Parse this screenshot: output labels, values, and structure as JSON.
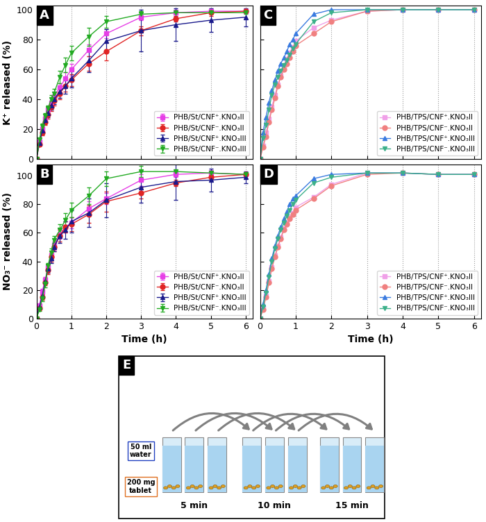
{
  "chart_data": [
    {
      "type": "line",
      "title": "A",
      "y_label": "K⁺ released (%)",
      "x": [
        0,
        0.083,
        0.167,
        0.25,
        0.33,
        0.42,
        0.5,
        0.67,
        0.83,
        1,
        1.5,
        2,
        3,
        4,
        5,
        6
      ],
      "xlim": [
        0,
        6.2
      ],
      "xticks": [
        0,
        1,
        2,
        3,
        4,
        5,
        6
      ],
      "ylim": [
        0,
        103
      ],
      "yticks": [
        0,
        20,
        40,
        60,
        80,
        100
      ],
      "grid": "x",
      "legend": "lower right",
      "tick_labels": "y",
      "series": [
        {
          "name": "PHB/St/CNF⁺.KNO₃II",
          "color": "#e63ee6",
          "marker": "square",
          "line_style": "solid",
          "values": [
            0,
            12,
            20,
            27,
            33,
            38,
            42,
            48,
            54,
            60,
            73,
            84,
            95,
            98,
            99,
            99
          ],
          "errors": [
            0,
            1,
            2,
            2,
            2,
            3,
            3,
            3,
            4,
            4,
            4,
            3,
            2,
            2,
            1,
            1
          ]
        },
        {
          "name": "PHB/St/CNF⁻.KNO₃II",
          "color": "#e02424",
          "marker": "circle",
          "line_style": "solid",
          "values": [
            0,
            10,
            18,
            25,
            30,
            35,
            39,
            44,
            49,
            53,
            64,
            72,
            86,
            94,
            98,
            99
          ],
          "errors": [
            0,
            1,
            2,
            2,
            3,
            3,
            3,
            4,
            4,
            4,
            5,
            6,
            3,
            2,
            2,
            1
          ]
        },
        {
          "name": "PHB/St/CNF⁺.KNO₃III",
          "color": "#1a1a8c",
          "marker": "triangle_up",
          "line_style": "solid",
          "values": [
            0,
            11,
            19,
            26,
            31,
            36,
            40,
            45,
            49,
            54,
            66,
            79,
            86,
            90,
            93,
            95
          ],
          "errors": [
            0,
            1,
            2,
            2,
            3,
            3,
            3,
            4,
            5,
            6,
            8,
            8,
            14,
            11,
            8,
            6
          ]
        },
        {
          "name": "PHB/St/CNF⁻.KNO₃III",
          "color": "#22aa22",
          "marker": "triangle_down",
          "line_style": "solid",
          "values": [
            0,
            13,
            22,
            29,
            34,
            40,
            44,
            55,
            63,
            71,
            82,
            92,
            97,
            98,
            98,
            98
          ],
          "errors": [
            0,
            1,
            2,
            2,
            2,
            3,
            3,
            4,
            5,
            5,
            6,
            4,
            2,
            1,
            1,
            1
          ]
        }
      ]
    },
    {
      "type": "line",
      "title": "B",
      "x_label": "Time (h)",
      "y_label": "NO₃⁻ released (%)",
      "x": [
        0,
        0.083,
        0.167,
        0.25,
        0.33,
        0.42,
        0.5,
        0.67,
        0.83,
        1,
        1.5,
        2,
        3,
        4,
        5,
        6
      ],
      "xlim": [
        0,
        6.2
      ],
      "xticks": [
        0,
        1,
        2,
        3,
        4,
        5,
        6
      ],
      "ylim": [
        0,
        108
      ],
      "yticks": [
        0,
        20,
        40,
        60,
        80,
        100
      ],
      "grid": "x",
      "legend": "lower right",
      "series": [
        {
          "name": "PHB/St/CNF⁺.KNO₃II",
          "color": "#e63ee6",
          "marker": "square",
          "line_style": "solid",
          "values": [
            0,
            9,
            19,
            27,
            36,
            44,
            51,
            59,
            64,
            67,
            77,
            84,
            97,
            101,
            102,
            101
          ],
          "errors": [
            0,
            1,
            2,
            2,
            2,
            3,
            3,
            3,
            4,
            4,
            5,
            4,
            4,
            2,
            2,
            1
          ]
        },
        {
          "name": "PHB/St/CNF⁻.KNO₃II",
          "color": "#e02424",
          "marker": "circle",
          "line_style": "solid",
          "values": [
            0,
            7,
            15,
            25,
            34,
            43,
            50,
            58,
            64,
            66,
            73,
            82,
            88,
            95,
            99,
            101
          ],
          "errors": [
            0,
            1,
            2,
            2,
            3,
            3,
            3,
            4,
            4,
            5,
            6,
            7,
            4,
            2,
            2,
            1
          ]
        },
        {
          "name": "PHB/St/CNF⁺.KNO₃III",
          "color": "#1a1a8c",
          "marker": "triangle_up",
          "line_style": "solid",
          "values": [
            0,
            8,
            16,
            26,
            35,
            42,
            50,
            58,
            62,
            68,
            74,
            83,
            92,
            96,
            97,
            99
          ],
          "errors": [
            0,
            1,
            2,
            2,
            3,
            3,
            3,
            5,
            6,
            8,
            10,
            12,
            11,
            13,
            8,
            4
          ]
        },
        {
          "name": "PHB/St/CNF⁻.KNO₃III",
          "color": "#22aa22",
          "marker": "triangle_down",
          "line_style": "solid",
          "values": [
            0,
            6,
            14,
            24,
            37,
            46,
            55,
            62,
            69,
            76,
            86,
            98,
            103,
            103,
            102,
            101
          ],
          "errors": [
            0,
            1,
            2,
            2,
            2,
            3,
            3,
            4,
            5,
            5,
            6,
            5,
            4,
            1,
            1,
            1
          ]
        }
      ]
    },
    {
      "type": "line",
      "title": "C",
      "x": [
        0,
        0.083,
        0.167,
        0.25,
        0.33,
        0.42,
        0.5,
        0.58,
        0.67,
        0.75,
        0.83,
        0.92,
        1,
        1.5,
        2,
        3,
        4,
        5,
        6
      ],
      "xlim": [
        0,
        6.2
      ],
      "xticks": [
        0,
        1,
        2,
        3,
        4,
        5,
        6
      ],
      "ylim": [
        0,
        103
      ],
      "yticks": [
        0,
        20,
        40,
        60,
        80,
        100
      ],
      "grid": "x",
      "legend": "lower right",
      "tick_labels": false,
      "series": [
        {
          "name": "PHB/TPS/CNF⁺.KNO₃II",
          "color": "#f0a0e8",
          "marker": "square",
          "line_style": "solid",
          "values": [
            0,
            9,
            18,
            27,
            35,
            43,
            50,
            56,
            62,
            67,
            71,
            75,
            79,
            88,
            93,
            99,
            100,
            100,
            100
          ]
        },
        {
          "name": "PHB/TPS/CNF⁻.KNO₃II",
          "color": "#f08080",
          "marker": "circle",
          "line_style": "solid",
          "values": [
            0,
            8,
            15,
            25,
            33,
            41,
            49,
            55,
            60,
            64,
            68,
            72,
            76,
            84,
            92,
            99,
            100,
            100,
            100
          ]
        },
        {
          "name": "PHB/TPS/CNF⁺.KNO₃III",
          "color": "#3a7be0",
          "marker": "triangle_up",
          "line_style": "solid",
          "values": [
            0,
            18,
            28,
            38,
            46,
            53,
            59,
            64,
            68,
            72,
            77,
            80,
            84,
            97,
            100,
            100,
            100,
            100,
            100
          ]
        },
        {
          "name": "PHB/TPS/CNF⁻.KNO₃III",
          "color": "#3cb08a",
          "marker": "triangle_down",
          "line_style": "solid",
          "values": [
            0,
            14,
            23,
            33,
            43,
            50,
            55,
            59,
            63,
            66,
            70,
            74,
            77,
            92,
            98,
            100,
            100,
            100,
            100
          ]
        }
      ]
    },
    {
      "type": "line",
      "title": "D",
      "x_label": "Time (h)",
      "x": [
        0,
        0.083,
        0.167,
        0.25,
        0.33,
        0.42,
        0.5,
        0.58,
        0.67,
        0.75,
        0.83,
        0.92,
        1,
        1.5,
        2,
        3,
        4,
        5,
        6
      ],
      "xlim": [
        0,
        6.2
      ],
      "xticks": [
        0,
        1,
        2,
        3,
        4,
        5,
        6
      ],
      "ylim": [
        0,
        108
      ],
      "yticks": [
        0,
        20,
        40,
        60,
        80,
        100
      ],
      "grid": "x",
      "legend": "lower right",
      "tick_labels": "x",
      "series": [
        {
          "name": "PHB/TPS/CNF⁺.KNO₃II",
          "color": "#f0a0e8",
          "marker": "square",
          "line_style": "solid",
          "values": [
            0,
            7,
            16,
            26,
            36,
            44,
            51,
            57,
            63,
            67,
            71,
            74,
            78,
            85,
            94,
            102,
            102,
            101,
            101
          ]
        },
        {
          "name": "PHB/TPS/CNF⁻.KNO₃II",
          "color": "#f08080",
          "marker": "circle",
          "line_style": "solid",
          "values": [
            0,
            6,
            15,
            25,
            35,
            43,
            50,
            56,
            62,
            66,
            70,
            73,
            76,
            84,
            93,
            101,
            102,
            101,
            101
          ]
        },
        {
          "name": "PHB/TPS/CNF⁺.KNO₃III",
          "color": "#3a7be0",
          "marker": "triangle_up",
          "line_style": "solid",
          "values": [
            0,
            10,
            20,
            31,
            42,
            51,
            58,
            64,
            70,
            75,
            80,
            84,
            86,
            98,
            101,
            102,
            102,
            101,
            101
          ]
        },
        {
          "name": "PHB/TPS/CNF⁻.KNO₃III",
          "color": "#3cb08a",
          "marker": "triangle_down",
          "line_style": "solid",
          "values": [
            0,
            8,
            18,
            29,
            40,
            49,
            56,
            62,
            67,
            72,
            76,
            80,
            83,
            95,
            99,
            102,
            102,
            101,
            101
          ]
        }
      ]
    }
  ],
  "diagram": {
    "title": "E",
    "volume_label": "50 ml\nwater",
    "tablet_label": "200 mg\ntablet",
    "steps": [
      "5 min",
      "10 min",
      "15 min"
    ]
  }
}
